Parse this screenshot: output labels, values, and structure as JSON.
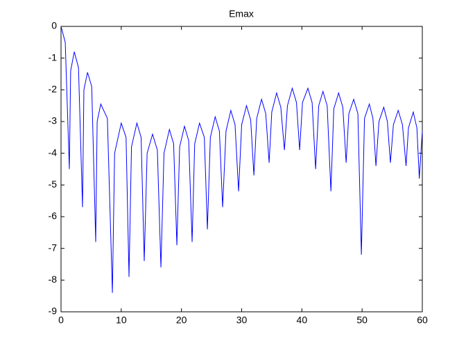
{
  "chart_data": {
    "type": "line",
    "title": "Emax",
    "x": [
      0,
      0.7,
      1.38,
      1.6,
      2.2,
      2.9,
      3.57,
      3.8,
      4.4,
      5.1,
      5.76,
      6.0,
      6.6,
      7.7,
      8.53,
      8.9,
      10.0,
      10.8,
      11.29,
      11.7,
      12.6,
      13.3,
      13.82,
      14.3,
      15.2,
      16.0,
      16.59,
      17.1,
      18.0,
      18.7,
      19.24,
      19.7,
      20.5,
      21.2,
      21.77,
      22.2,
      23.0,
      23.8,
      24.31,
      24.8,
      25.6,
      26.3,
      26.84,
      27.4,
      28.2,
      28.9,
      29.49,
      30.0,
      30.8,
      31.5,
      32.03,
      32.5,
      33.3,
      34.0,
      34.56,
      35.0,
      35.8,
      36.5,
      37.1,
      37.6,
      38.4,
      39.1,
      39.63,
      40.1,
      41.0,
      41.7,
      42.28,
      42.8,
      43.5,
      44.2,
      44.82,
      45.3,
      46.1,
      46.8,
      47.35,
      47.8,
      48.6,
      49.3,
      49.88,
      50.4,
      51.2,
      51.8,
      52.3,
      52.8,
      53.6,
      54.2,
      54.7,
      55.2,
      56.0,
      56.7,
      57.3,
      57.7,
      58.5,
      59.1,
      59.5,
      60
    ],
    "series": [
      {
        "color": "#0000ff",
        "values": [
          0,
          -0.5,
          -4.5,
          -1.4,
          -0.8,
          -1.3,
          -5.7,
          -2.0,
          -1.45,
          -1.9,
          -6.8,
          -3.0,
          -2.45,
          -2.9,
          -8.4,
          -4.0,
          -3.05,
          -3.5,
          -7.9,
          -3.8,
          -3.05,
          -3.5,
          -7.4,
          -4.0,
          -3.4,
          -3.9,
          -7.6,
          -4.0,
          -3.25,
          -3.7,
          -6.9,
          -3.8,
          -3.15,
          -3.6,
          -6.8,
          -3.7,
          -3.05,
          -3.5,
          -6.4,
          -3.5,
          -2.85,
          -3.3,
          -5.7,
          -3.3,
          -2.65,
          -3.1,
          -5.2,
          -3.1,
          -2.5,
          -2.95,
          -4.7,
          -2.9,
          -2.3,
          -2.75,
          -4.3,
          -2.7,
          -2.1,
          -2.55,
          -3.9,
          -2.5,
          -1.95,
          -2.4,
          -3.9,
          -2.4,
          -1.95,
          -2.4,
          -4.5,
          -2.5,
          -2.05,
          -2.5,
          -5.2,
          -2.6,
          -2.1,
          -2.55,
          -4.3,
          -2.75,
          -2.3,
          -2.75,
          -7.2,
          -2.9,
          -2.45,
          -2.9,
          -4.4,
          -3.0,
          -2.55,
          -3.0,
          -4.3,
          -3.1,
          -2.65,
          -3.1,
          -4.4,
          -3.2,
          -2.7,
          -3.2,
          -4.8,
          -3.3
        ]
      }
    ],
    "xlim": [
      0,
      60
    ],
    "xticks": [
      0,
      10,
      20,
      30,
      40,
      50,
      60
    ],
    "ylim": [
      -9,
      0
    ],
    "yticks": [
      -9,
      -8,
      -7,
      -6,
      -5,
      -4,
      -3,
      -2,
      -1,
      0
    ]
  }
}
